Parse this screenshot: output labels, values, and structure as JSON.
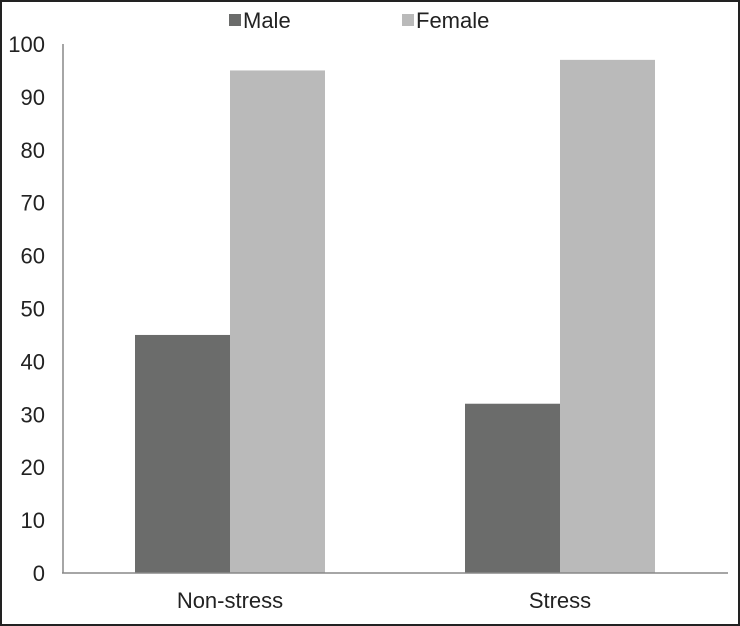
{
  "chart_data": {
    "type": "bar",
    "title": "",
    "xlabel": "",
    "ylabel": "",
    "categories": [
      "Non-stress",
      "Stress"
    ],
    "series": [
      {
        "name": "Male",
        "values": [
          45,
          32
        ],
        "color": "#6b6c6b"
      },
      {
        "name": "Female",
        "values": [
          95,
          97
        ],
        "color": "#bababa"
      }
    ],
    "ylim": [
      0,
      100
    ],
    "yticks": [
      "0",
      "10",
      "20",
      "30",
      "40",
      "50",
      "60",
      "70",
      "80",
      "90",
      "100"
    ],
    "grid": false,
    "legend_position": "top-center"
  }
}
